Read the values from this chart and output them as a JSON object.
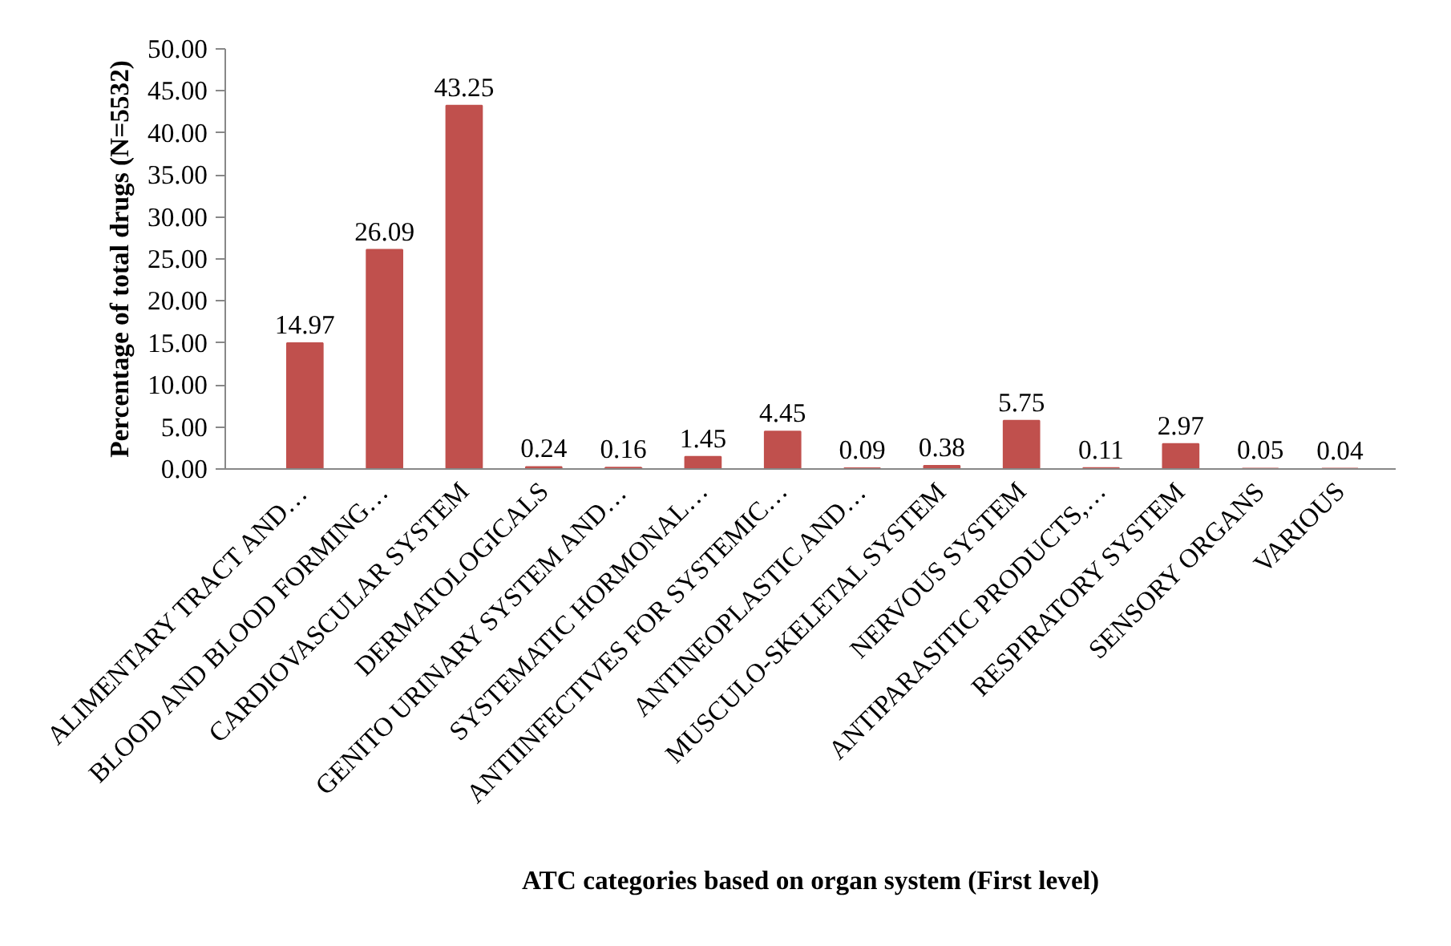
{
  "chart_data": {
    "type": "bar",
    "xlabel": "ATC categories based on organ system (First level)",
    "ylabel": "Percentage of total drugs (N=5532)",
    "categories": [
      "ALIMENTARY TRACT AND…",
      "BLOOD AND BLOOD FORMING…",
      "CARDIOVASCULAR SYSTEM",
      "DERMATOLOGICALS",
      "GENITO URINARY SYSTEM AND…",
      "SYSTEMATIC HORMONAL…",
      "ANTIINFECTIVES FOR SYSTEMIC…",
      "ANTINEOPLASTIC AND…",
      "MUSCULO-SKELETAL SYSTEM",
      "NERVOUS SYSTEM",
      "ANTIPARASITIC PRODUCTS,…",
      "RESPIRATORY SYSTEM",
      "SENSORY ORGANS",
      "VARIOUS"
    ],
    "values": [
      14.97,
      26.09,
      43.25,
      0.24,
      0.16,
      1.45,
      4.45,
      0.09,
      0.38,
      5.75,
      0.11,
      2.97,
      0.05,
      0.04
    ],
    "color": "#c0504d",
    "ylim": [
      0,
      50
    ],
    "yticks": [
      {
        "value": 0,
        "label": "0.00"
      },
      {
        "value": 5,
        "label": "5.00"
      },
      {
        "value": 10,
        "label": "10.00"
      },
      {
        "value": 15,
        "label": "15.00"
      },
      {
        "value": 20,
        "label": "20.00"
      },
      {
        "value": 25,
        "label": "25.00"
      },
      {
        "value": 30,
        "label": "30.00"
      },
      {
        "value": 35,
        "label": "35.00"
      },
      {
        "value": 40,
        "label": "40.00"
      },
      {
        "value": 45,
        "label": "45.00"
      },
      {
        "value": 50,
        "label": "50.00"
      }
    ],
    "data_labels": true,
    "grid": false
  }
}
